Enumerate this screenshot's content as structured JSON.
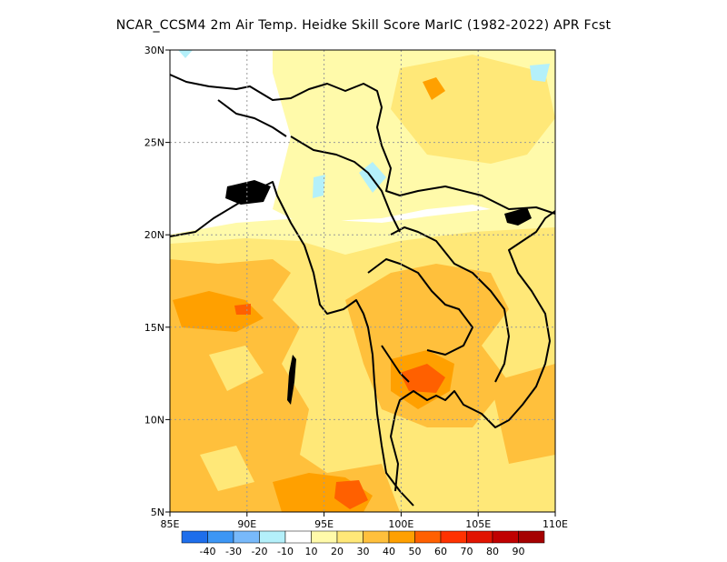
{
  "title": "NCAR_CCSM4  2m Air Temp. Heidke Skill Score MarIC (1982-2022) APR Fcst",
  "lon_ticks": [
    "85E",
    "90E",
    "95E",
    "100E",
    "105E",
    "110E"
  ],
  "lat_ticks": [
    "30N",
    "25N",
    "20N",
    "15N",
    "10N",
    "5N"
  ],
  "colorbar": {
    "labels": [
      "-40",
      "-30",
      "-20",
      "-10",
      "10",
      "20",
      "30",
      "40",
      "50",
      "60",
      "70",
      "80",
      "90"
    ],
    "colors": [
      "#1e6eeb",
      "#3c96f5",
      "#78b9fa",
      "#b4f0fa",
      "#ffffff",
      "#fffaaa",
      "#ffe878",
      "#ffc03c",
      "#ffa000",
      "#ff6000",
      "#ff3200",
      "#e11400",
      "#c00000",
      "#a50000"
    ]
  },
  "chart_data": {
    "type": "heatmap",
    "title": "NCAR_CCSM4  2m Air Temp. Heidke Skill Score MarIC (1982-2022) APR Fcst",
    "x_range": [
      85,
      110
    ],
    "y_range": [
      5,
      30
    ],
    "x_ticks": [
      "85E",
      "90E",
      "95E",
      "100E",
      "105E",
      "110E"
    ],
    "y_ticks": [
      "30N",
      "25N",
      "20N",
      "15N",
      "10N",
      "5N"
    ],
    "grid": true,
    "colorbar_levels": [
      -40,
      -30,
      -20,
      -10,
      10,
      20,
      30,
      40,
      50,
      60,
      70,
      80,
      90
    ]
  }
}
